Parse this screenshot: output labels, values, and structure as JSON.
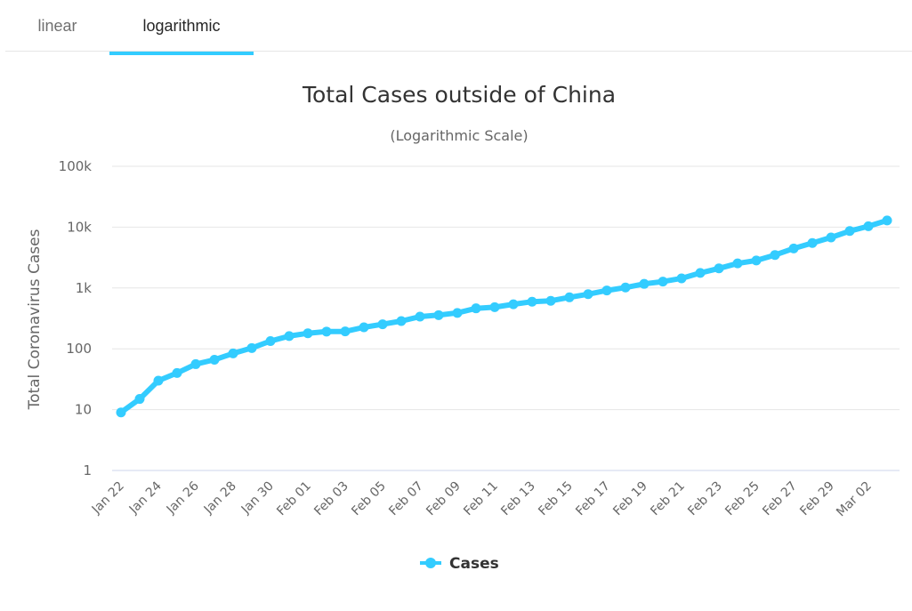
{
  "tabs": [
    {
      "label": "linear",
      "active": false
    },
    {
      "label": "logarithmic",
      "active": true
    }
  ],
  "colors": {
    "accent": "#33ccff",
    "grid": "#e6e6e6",
    "axis_line": "#ccd6eb",
    "text": "#333333",
    "tick_text": "#666666"
  },
  "chart_data": {
    "type": "line",
    "title": "Total Cases outside of China",
    "subtitle": "(Logarithmic Scale)",
    "xlabel": "",
    "ylabel": "Total Coronavirus Cases",
    "y_scale": "log",
    "ylim": [
      1,
      100000
    ],
    "y_ticks": [
      1,
      10,
      100,
      1000,
      10000,
      100000
    ],
    "y_tick_labels": [
      "1",
      "10",
      "100",
      "1k",
      "10k",
      "100k"
    ],
    "grid": true,
    "legend": "bottom-center",
    "x_tick_labels": [
      "Jan 22",
      "Jan 24",
      "Jan 26",
      "Jan 28",
      "Jan 30",
      "Feb 01",
      "Feb 03",
      "Feb 05",
      "Feb 07",
      "Feb 09",
      "Feb 11",
      "Feb 13",
      "Feb 15",
      "Feb 17",
      "Feb 19",
      "Feb 21",
      "Feb 23",
      "Feb 25",
      "Feb 27",
      "Feb 29",
      "Mar 02"
    ],
    "x": [
      "Jan 22",
      "Jan 23",
      "Jan 24",
      "Jan 25",
      "Jan 26",
      "Jan 27",
      "Jan 28",
      "Jan 29",
      "Jan 30",
      "Jan 31",
      "Feb 01",
      "Feb 02",
      "Feb 03",
      "Feb 04",
      "Feb 05",
      "Feb 06",
      "Feb 07",
      "Feb 08",
      "Feb 09",
      "Feb 10",
      "Feb 11",
      "Feb 12",
      "Feb 13",
      "Feb 14",
      "Feb 15",
      "Feb 16",
      "Feb 17",
      "Feb 18",
      "Feb 19",
      "Feb 20",
      "Feb 21",
      "Feb 22",
      "Feb 23",
      "Feb 24",
      "Feb 25",
      "Feb 26",
      "Feb 27",
      "Feb 28",
      "Feb 29",
      "Mar 01",
      "Mar 02",
      "Mar 03"
    ],
    "series": [
      {
        "name": "Cases",
        "values": [
          9,
          15,
          30,
          40,
          56,
          66,
          84,
          103,
          134,
          162,
          180,
          192,
          193,
          226,
          253,
          286,
          338,
          358,
          389,
          463,
          484,
          540,
          595,
          615,
          702,
          791,
          911,
          1018,
          1168,
          1273,
          1437,
          1768,
          2099,
          2536,
          2832,
          3487,
          4459,
          5478,
          6768,
          8635,
          10347,
          12870
        ]
      }
    ]
  }
}
